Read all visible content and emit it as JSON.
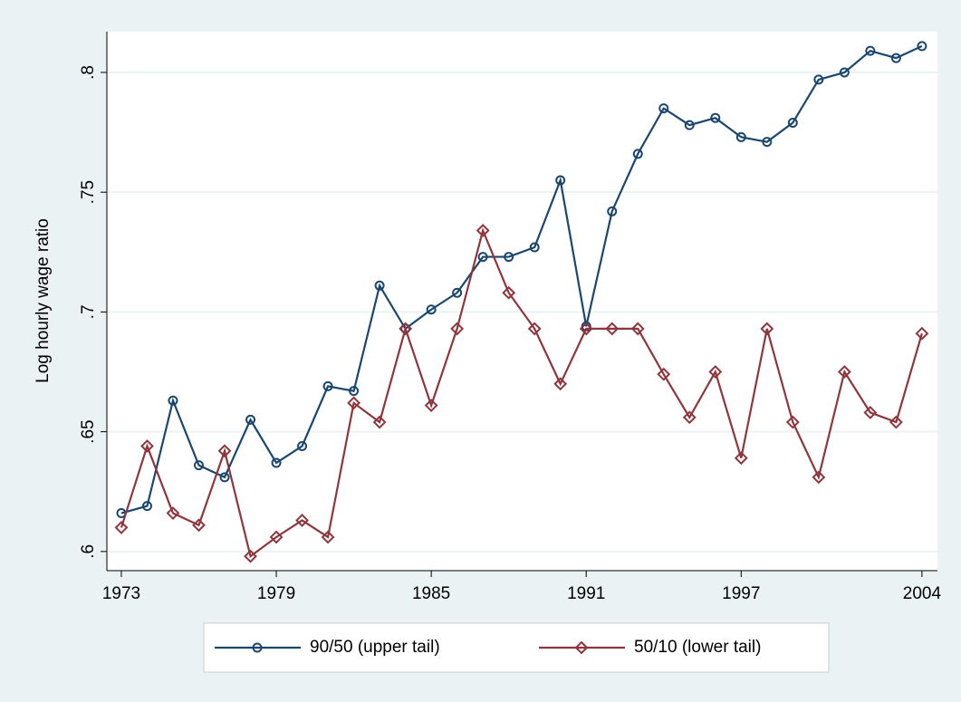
{
  "chart_data": {
    "type": "line",
    "y_label": "Log hourly wage ratio",
    "x": [
      1973,
      1974,
      1975,
      1976,
      1977,
      1978,
      1979,
      1980,
      1981,
      1982,
      1983,
      1984,
      1985,
      1986,
      1987,
      1988,
      1989,
      1990,
      1991,
      1992,
      1993,
      1994,
      1995,
      1996,
      1997,
      1998,
      1999,
      2000,
      2001,
      2002,
      2003,
      2004
    ],
    "series": [
      {
        "name": "90/50 (upper tail)",
        "color": "#1a476f",
        "marker": "circle",
        "values": [
          0.616,
          0.619,
          0.663,
          0.636,
          0.631,
          0.655,
          0.637,
          0.644,
          0.669,
          0.667,
          0.711,
          0.693,
          0.701,
          0.708,
          0.723,
          0.723,
          0.727,
          0.755,
          0.694,
          0.742,
          0.766,
          0.785,
          0.778,
          0.781,
          0.773,
          0.771,
          0.779,
          0.797,
          0.8,
          0.809,
          0.806,
          0.811
        ]
      },
      {
        "name": "50/10 (lower tail)",
        "color": "#90353b",
        "marker": "diamond",
        "values": [
          0.61,
          0.644,
          0.616,
          0.611,
          0.642,
          0.598,
          0.606,
          0.613,
          0.606,
          0.662,
          0.654,
          0.693,
          0.661,
          0.693,
          0.734,
          0.708,
          0.693,
          0.67,
          0.693,
          0.693,
          0.693,
          0.674,
          0.656,
          0.675,
          0.639,
          0.693,
          0.654,
          0.631,
          0.675,
          0.658,
          0.654,
          0.691
        ]
      }
    ],
    "xlim": [
      1972.44,
      2004.6
    ],
    "xticks": [
      1973,
      1979,
      1985,
      1991,
      1997,
      2004
    ],
    "ylim": [
      0.592,
      0.817
    ],
    "yticks": [
      {
        "value": 0.6,
        "label": ".6"
      },
      {
        "value": 0.65,
        "label": ".65"
      },
      {
        "value": 0.7,
        "label": ".7"
      },
      {
        "value": 0.75,
        "label": ".75"
      },
      {
        "value": 0.8,
        "label": ".8"
      }
    ],
    "grid": true,
    "legend": "bottom"
  }
}
